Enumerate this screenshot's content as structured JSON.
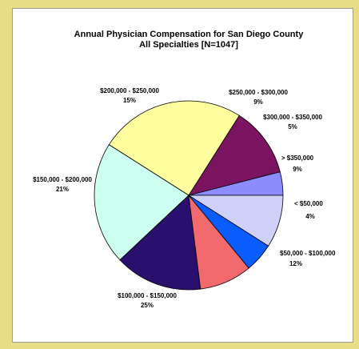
{
  "chart_data": {
    "type": "pie",
    "title": "Annual Physician Compensation for San Diego County",
    "subtitle": "All Specialties [N=1047]",
    "slices": [
      {
        "label": "< $50,000",
        "pct_label": "4%",
        "value": 4,
        "color": "#8c8cff"
      },
      {
        "label": "$50,000 - $100,000",
        "pct_label": "12%",
        "value": 12,
        "color": "#7a1460"
      },
      {
        "label": "$100,000 - $150,000",
        "pct_label": "25%",
        "value": 25,
        "color": "#ffffa0"
      },
      {
        "label": "$150,000 - $200,000",
        "pct_label": "21%",
        "value": 21,
        "color": "#ccfff0"
      },
      {
        "label": "$200,000 - $250,000",
        "pct_label": "15%",
        "value": 15,
        "color": "#2a0f6e"
      },
      {
        "label": "$250,000 - $300,000",
        "pct_label": "9%",
        "value": 9,
        "color": "#f26a6e"
      },
      {
        "label": "$300,000 - $350,000",
        "pct_label": "5%",
        "value": 5,
        "color": "#0a5cff"
      },
      {
        "label": "> $350,000",
        "pct_label": "9%",
        "value": 9,
        "color": "#cfd0f7"
      }
    ]
  }
}
